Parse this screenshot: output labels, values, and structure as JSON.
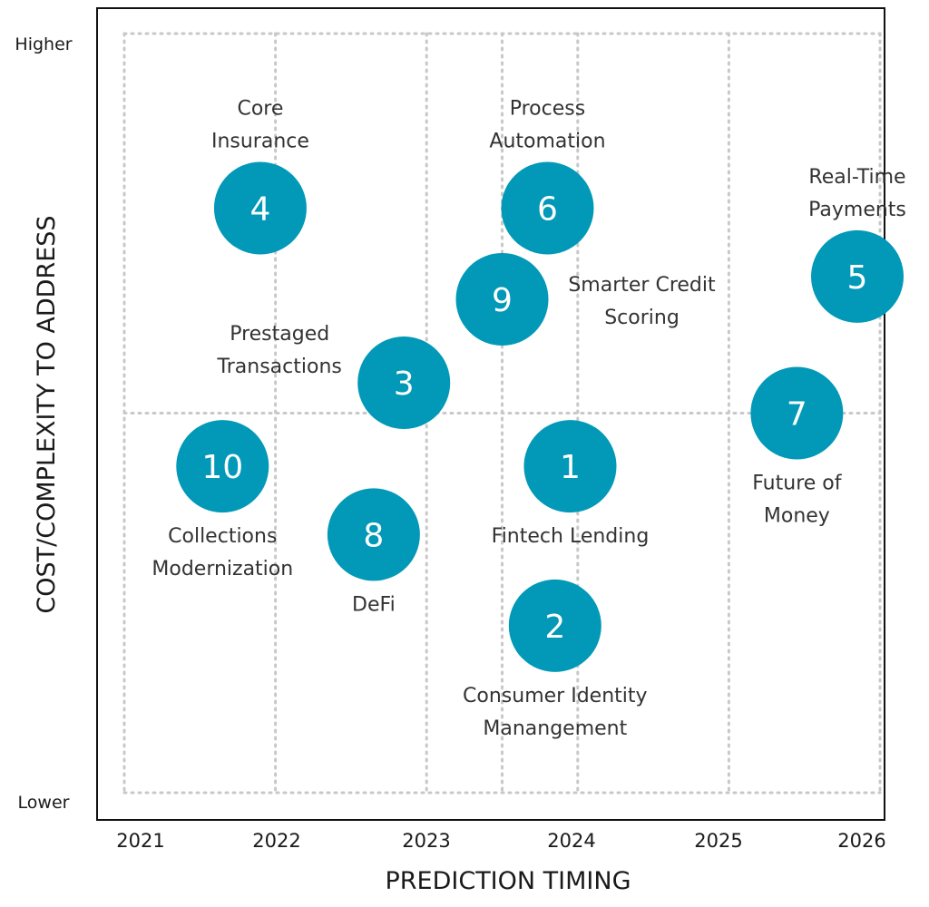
{
  "chart_data": {
    "type": "scatter",
    "xlabel": "PREDICTION TIMING",
    "ylabel": "COST/COMPLEXITY TO ADDRESS",
    "x_ticks": [
      "2021",
      "2022",
      "2023",
      "2024",
      "2025",
      "2026"
    ],
    "xlim": [
      2021,
      2026
    ],
    "ylim": [
      0,
      1
    ],
    "y_ticks": [
      {
        "label": "Lower",
        "value": 0
      },
      {
        "label": "Higher",
        "value": 1
      }
    ],
    "grid": "dotted, quadrant lines at x=2023.5 and y=0.5",
    "marker_color": "#0199b7",
    "items": [
      {
        "number": "1",
        "label": [
          "Fintech Lending"
        ],
        "x": 2023.95,
        "y": 0.43,
        "label_pos": "below"
      },
      {
        "number": "2",
        "label": [
          "Consumer Identity",
          "Manangement"
        ],
        "x": 2023.85,
        "y": 0.22,
        "label_pos": "below"
      },
      {
        "number": "3",
        "label": [
          "Prestaged",
          "Transactions"
        ],
        "x": 2022.85,
        "y": 0.54,
        "label_pos": "left"
      },
      {
        "number": "4",
        "label": [
          "Core",
          "Insurance"
        ],
        "x": 2021.9,
        "y": 0.77,
        "label_pos": "above"
      },
      {
        "number": "5",
        "label": [
          "Real-Time",
          "Payments"
        ],
        "x": 2025.85,
        "y": 0.68,
        "label_pos": "above"
      },
      {
        "number": "6",
        "label": [
          "Process",
          "Automation"
        ],
        "x": 2023.8,
        "y": 0.77,
        "label_pos": "above"
      },
      {
        "number": "7",
        "label": [
          "Future of",
          "Money"
        ],
        "x": 2025.45,
        "y": 0.5,
        "label_pos": "below"
      },
      {
        "number": "8",
        "label": [
          "DeFi"
        ],
        "x": 2022.65,
        "y": 0.34,
        "label_pos": "below"
      },
      {
        "number": "9",
        "label": [
          "Smarter  Credit",
          "Scoring"
        ],
        "x": 2023.5,
        "y": 0.65,
        "label_pos": "right"
      },
      {
        "number": "10",
        "label": [
          "Collections",
          "Modernization"
        ],
        "x": 2021.65,
        "y": 0.43,
        "label_pos": "below"
      }
    ]
  }
}
